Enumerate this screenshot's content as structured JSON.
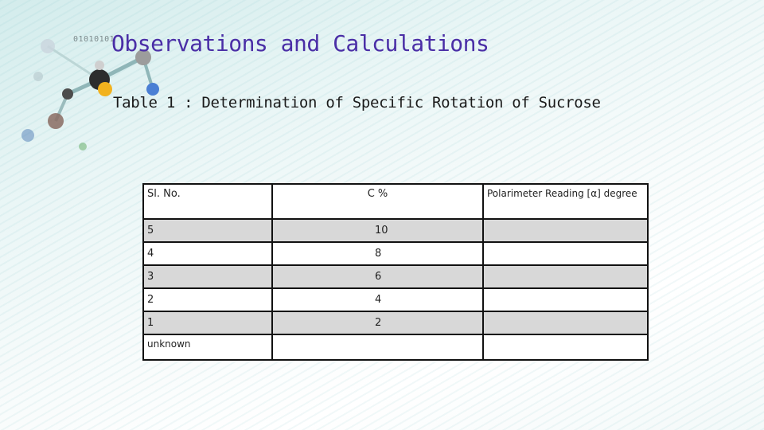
{
  "slide": {
    "decoration_text": "01010101",
    "title": "Observations and Calculations",
    "subtitle": "Table 1 : Determination of Specific Rotation of Sucrose"
  },
  "table": {
    "headers": [
      "Sl. No.",
      "C %",
      "Polarimeter Reading [α] degree"
    ],
    "rows": [
      [
        "5",
        "10",
        ""
      ],
      [
        "4",
        "8",
        ""
      ],
      [
        "3",
        "6",
        ""
      ],
      [
        "2",
        "4",
        ""
      ],
      [
        "1",
        "2",
        ""
      ],
      [
        "unknown",
        "",
        ""
      ]
    ]
  },
  "colors": {
    "title": "#4a2ea6",
    "shaded_row": "#d8d8d8",
    "border": "#111111"
  }
}
